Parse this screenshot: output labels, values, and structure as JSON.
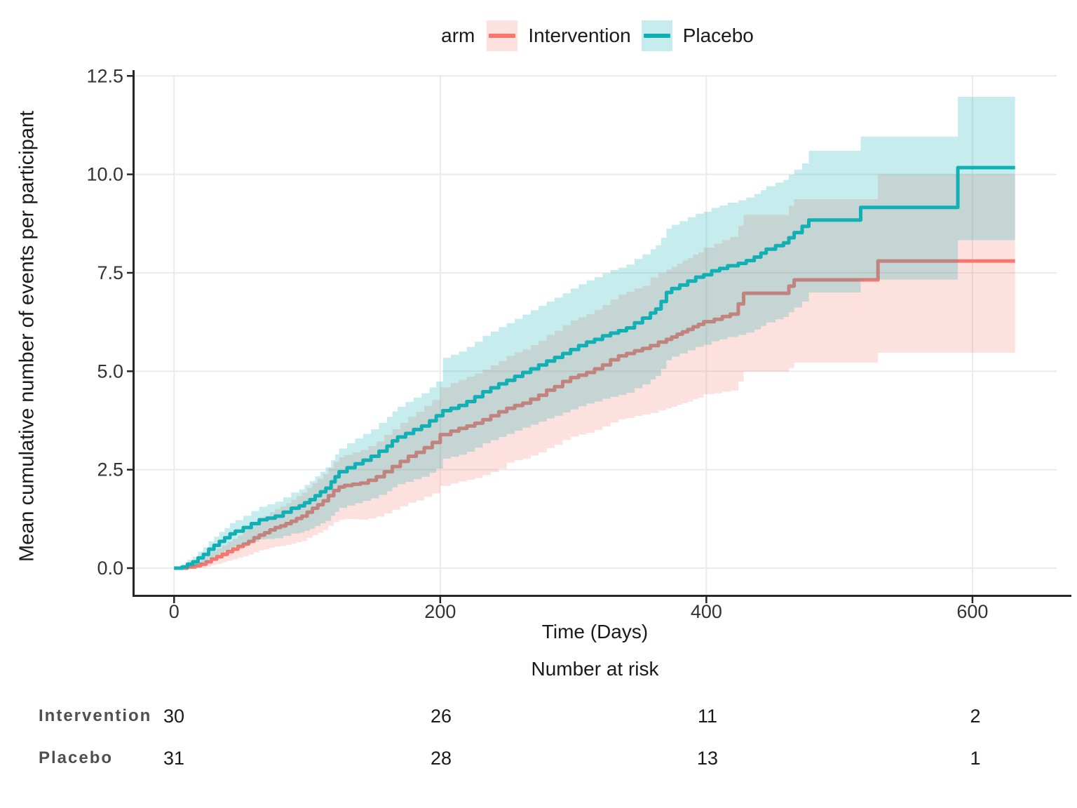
{
  "colors": {
    "background": "#ffffff",
    "gridline": "#ebebeb",
    "axis_line": "#262626",
    "tick_text": "#333333",
    "text": "#1a1a1a",
    "risk_label": "#4f4f4f"
  },
  "chart_data": {
    "type": "line",
    "subtype": "step-function-with-confidence-ribbons",
    "title": "",
    "legend": {
      "title": "arm",
      "position": "top",
      "entries": [
        {
          "label": "Intervention",
          "color": "#F8766D"
        },
        {
          "label": "Placebo",
          "color": "#10B0B5"
        }
      ]
    },
    "x_axis": {
      "title": "Time (Days)",
      "ticks": [
        0,
        200,
        400,
        600
      ],
      "tick_labels": [
        "0",
        "200",
        "400",
        "600"
      ],
      "range": [
        0,
        663
      ]
    },
    "y_axis": {
      "title": "Mean cumulative number of events per participant",
      "ticks": [
        0,
        2.5,
        5,
        7.5,
        10,
        12.5
      ],
      "tick_labels": [
        "0.0",
        "2.5",
        "5.0",
        "7.5",
        "10.0",
        "12.5"
      ],
      "range": [
        0,
        12.5
      ]
    },
    "grid": "major",
    "series": [
      {
        "name": "Intervention",
        "color": "#F8766D",
        "ribbon_alpha": 0.22,
        "points_format": [
          "time_days",
          "mcf",
          "ci_lower",
          "ci_upper"
        ],
        "points": [
          [
            0,
            0,
            0,
            0
          ],
          [
            10,
            0.03,
            0,
            0.1
          ],
          [
            16,
            0.06,
            0,
            0.16
          ],
          [
            20,
            0.1,
            0.01,
            0.24
          ],
          [
            24,
            0.16,
            0.04,
            0.33
          ],
          [
            28,
            0.23,
            0.08,
            0.42
          ],
          [
            32,
            0.29,
            0.11,
            0.5
          ],
          [
            36,
            0.35,
            0.15,
            0.58
          ],
          [
            40,
            0.42,
            0.19,
            0.67
          ],
          [
            44,
            0.48,
            0.22,
            0.74
          ],
          [
            48,
            0.55,
            0.26,
            0.83
          ],
          [
            52,
            0.61,
            0.3,
            0.97
          ],
          [
            56,
            0.68,
            0.34,
            1.05
          ],
          [
            60,
            0.77,
            0.4,
            1.16
          ],
          [
            64,
            0.84,
            0.45,
            1.25
          ],
          [
            68,
            0.9,
            0.48,
            1.33
          ],
          [
            72,
            0.97,
            0.52,
            1.42
          ],
          [
            76,
            1.03,
            0.55,
            1.5
          ],
          [
            80,
            1.07,
            0.56,
            1.57
          ],
          [
            84,
            1.13,
            0.59,
            1.65
          ],
          [
            88,
            1.19,
            0.62,
            1.73
          ],
          [
            92,
            1.26,
            0.66,
            1.83
          ],
          [
            96,
            1.32,
            0.69,
            1.92
          ],
          [
            100,
            1.42,
            0.77,
            2.04
          ],
          [
            104,
            1.52,
            0.84,
            2.16
          ],
          [
            108,
            1.61,
            0.9,
            2.27
          ],
          [
            112,
            1.71,
            0.97,
            2.39
          ],
          [
            116,
            1.84,
            1.07,
            2.54
          ],
          [
            120,
            1.97,
            1.17,
            2.7
          ],
          [
            124,
            2.06,
            1.23,
            2.81
          ],
          [
            128,
            2.1,
            1.25,
            2.87
          ],
          [
            134,
            2.13,
            1.24,
            2.94
          ],
          [
            140,
            2.16,
            1.23,
            3.0
          ],
          [
            146,
            2.23,
            1.26,
            3.1
          ],
          [
            152,
            2.32,
            1.31,
            3.22
          ],
          [
            158,
            2.45,
            1.39,
            3.38
          ],
          [
            164,
            2.58,
            1.48,
            3.53
          ],
          [
            170,
            2.71,
            1.57,
            3.69
          ],
          [
            176,
            2.84,
            1.66,
            3.84
          ],
          [
            182,
            2.94,
            1.72,
            3.97
          ],
          [
            188,
            3.06,
            1.81,
            4.12
          ],
          [
            194,
            3.19,
            1.9,
            4.27
          ],
          [
            200,
            3.39,
            2.09,
            4.59
          ],
          [
            208,
            3.48,
            2.15,
            4.7
          ],
          [
            214,
            3.55,
            2.2,
            4.78
          ],
          [
            220,
            3.61,
            2.24,
            4.86
          ],
          [
            226,
            3.68,
            2.29,
            4.94
          ],
          [
            232,
            3.77,
            2.36,
            5.04
          ],
          [
            238,
            3.87,
            2.44,
            5.15
          ],
          [
            244,
            3.97,
            2.52,
            5.26
          ],
          [
            250,
            4.06,
            2.68,
            5.39
          ],
          [
            256,
            4.13,
            2.74,
            5.48
          ],
          [
            262,
            4.19,
            2.78,
            5.55
          ],
          [
            268,
            4.29,
            2.86,
            5.66
          ],
          [
            274,
            4.39,
            2.94,
            5.77
          ],
          [
            280,
            4.52,
            3.05,
            5.92
          ],
          [
            286,
            4.61,
            3.13,
            6.03
          ],
          [
            292,
            4.74,
            3.25,
            6.17
          ],
          [
            298,
            4.84,
            3.34,
            6.29
          ],
          [
            304,
            4.9,
            3.39,
            6.37
          ],
          [
            310,
            4.97,
            3.44,
            6.45
          ],
          [
            316,
            5.06,
            3.51,
            6.56
          ],
          [
            322,
            5.16,
            3.6,
            6.68
          ],
          [
            328,
            5.29,
            3.7,
            6.82
          ],
          [
            334,
            5.39,
            3.78,
            6.94
          ],
          [
            340,
            5.45,
            3.81,
            7.02
          ],
          [
            346,
            5.52,
            3.86,
            7.1
          ],
          [
            352,
            5.58,
            3.9,
            7.17
          ],
          [
            358,
            5.65,
            3.94,
            7.38
          ],
          [
            364,
            5.74,
            4.01,
            7.49
          ],
          [
            370,
            5.81,
            4.06,
            7.58
          ],
          [
            374,
            5.87,
            4.1,
            7.65
          ],
          [
            378,
            5.94,
            4.15,
            7.73
          ],
          [
            382,
            6.0,
            4.19,
            7.81
          ],
          [
            386,
            6.06,
            4.23,
            7.87
          ],
          [
            390,
            6.13,
            4.29,
            7.96
          ],
          [
            394,
            6.19,
            4.33,
            8.02
          ],
          [
            398,
            6.26,
            4.42,
            8.14
          ],
          [
            406,
            6.32,
            4.44,
            8.24
          ],
          [
            412,
            6.39,
            4.48,
            8.33
          ],
          [
            418,
            6.45,
            4.51,
            8.41
          ],
          [
            424,
            6.71,
            4.74,
            8.69
          ],
          [
            428,
            6.98,
            4.99,
            8.97
          ],
          [
            462,
            7.16,
            5.08,
            9.2
          ],
          [
            466,
            7.32,
            5.22,
            9.37
          ],
          [
            529,
            7.8,
            5.47,
            10.0
          ],
          [
            632,
            7.8,
            5.47,
            10.0
          ]
        ]
      },
      {
        "name": "Placebo",
        "color": "#10B0B5",
        "ribbon_alpha": 0.24,
        "points_format": [
          "time_days",
          "mcf",
          "ci_lower",
          "ci_upper"
        ],
        "points": [
          [
            0,
            0,
            0,
            0
          ],
          [
            6,
            0.03,
            0,
            0.1
          ],
          [
            10,
            0.1,
            0.02,
            0.21
          ],
          [
            14,
            0.16,
            0.05,
            0.29
          ],
          [
            18,
            0.26,
            0.1,
            0.42
          ],
          [
            22,
            0.35,
            0.15,
            0.53
          ],
          [
            26,
            0.48,
            0.24,
            0.68
          ],
          [
            30,
            0.58,
            0.31,
            0.8
          ],
          [
            34,
            0.68,
            0.38,
            0.92
          ],
          [
            38,
            0.77,
            0.44,
            1.02
          ],
          [
            42,
            0.87,
            0.51,
            1.14
          ],
          [
            46,
            0.94,
            0.56,
            1.22
          ],
          [
            52,
            1.03,
            0.61,
            1.33
          ],
          [
            58,
            1.13,
            0.67,
            1.45
          ],
          [
            64,
            1.23,
            0.73,
            1.56
          ],
          [
            70,
            1.27,
            0.74,
            1.62
          ],
          [
            76,
            1.32,
            0.76,
            1.69
          ],
          [
            82,
            1.42,
            0.82,
            1.8
          ],
          [
            88,
            1.52,
            0.88,
            1.92
          ],
          [
            94,
            1.58,
            0.9,
            2.0
          ],
          [
            98,
            1.66,
            0.95,
            2.11
          ],
          [
            102,
            1.74,
            1.0,
            2.21
          ],
          [
            106,
            1.84,
            1.07,
            2.33
          ],
          [
            110,
            1.94,
            1.14,
            2.45
          ],
          [
            114,
            2.03,
            1.2,
            2.56
          ],
          [
            118,
            2.19,
            1.33,
            2.74
          ],
          [
            121,
            2.32,
            1.43,
            2.89
          ],
          [
            124,
            2.45,
            1.53,
            3.04
          ],
          [
            130,
            2.55,
            1.59,
            3.17
          ],
          [
            136,
            2.65,
            1.65,
            3.29
          ],
          [
            142,
            2.74,
            1.71,
            3.41
          ],
          [
            148,
            2.84,
            1.77,
            3.53
          ],
          [
            154,
            2.97,
            1.86,
            3.69
          ],
          [
            160,
            3.1,
            1.95,
            3.84
          ],
          [
            164,
            3.23,
            2.05,
            3.98
          ],
          [
            168,
            3.33,
            2.13,
            4.1
          ],
          [
            174,
            3.42,
            2.19,
            4.22
          ],
          [
            180,
            3.52,
            2.26,
            4.33
          ],
          [
            186,
            3.61,
            2.32,
            4.44
          ],
          [
            192,
            3.74,
            2.42,
            4.59
          ],
          [
            197,
            3.87,
            2.53,
            4.74
          ],
          [
            202,
            4.0,
            2.78,
            5.34
          ],
          [
            208,
            4.06,
            2.83,
            5.42
          ],
          [
            214,
            4.13,
            2.88,
            5.5
          ],
          [
            220,
            4.23,
            2.96,
            5.62
          ],
          [
            226,
            4.35,
            3.06,
            5.75
          ],
          [
            232,
            4.48,
            3.17,
            5.9
          ],
          [
            238,
            4.58,
            3.25,
            6.01
          ],
          [
            244,
            4.68,
            3.33,
            6.12
          ],
          [
            250,
            4.77,
            3.41,
            6.22
          ],
          [
            256,
            4.87,
            3.49,
            6.33
          ],
          [
            262,
            4.97,
            3.57,
            6.44
          ],
          [
            268,
            5.06,
            3.64,
            6.55
          ],
          [
            274,
            5.16,
            3.72,
            6.66
          ],
          [
            280,
            5.26,
            3.8,
            6.77
          ],
          [
            286,
            5.35,
            3.87,
            6.87
          ],
          [
            292,
            5.45,
            3.95,
            6.98
          ],
          [
            298,
            5.55,
            4.03,
            7.1
          ],
          [
            304,
            5.65,
            4.11,
            7.21
          ],
          [
            310,
            5.74,
            4.18,
            7.31
          ],
          [
            316,
            5.81,
            4.23,
            7.39
          ],
          [
            322,
            5.9,
            4.3,
            7.49
          ],
          [
            328,
            5.97,
            4.35,
            7.57
          ],
          [
            334,
            6.03,
            4.4,
            7.63
          ],
          [
            340,
            6.1,
            4.45,
            7.71
          ],
          [
            346,
            6.23,
            4.57,
            7.85
          ],
          [
            352,
            6.35,
            4.67,
            7.97
          ],
          [
            358,
            6.48,
            4.79,
            8.1
          ],
          [
            362,
            6.58,
            4.88,
            8.2
          ],
          [
            366,
            6.77,
            5.06,
            8.39
          ],
          [
            370,
            7.0,
            5.28,
            8.62
          ],
          [
            374,
            7.1,
            5.37,
            8.72
          ],
          [
            380,
            7.19,
            5.45,
            8.81
          ],
          [
            386,
            7.29,
            5.53,
            8.91
          ],
          [
            392,
            7.39,
            5.62,
            9.0
          ],
          [
            398,
            7.45,
            5.67,
            9.05
          ],
          [
            404,
            7.55,
            5.76,
            9.15
          ],
          [
            410,
            7.61,
            5.81,
            9.21
          ],
          [
            416,
            7.68,
            5.87,
            9.28
          ],
          [
            424,
            7.74,
            5.92,
            9.34
          ],
          [
            430,
            7.81,
            5.98,
            9.41
          ],
          [
            436,
            7.9,
            6.06,
            9.5
          ],
          [
            441,
            8.0,
            6.15,
            9.6
          ],
          [
            445,
            8.1,
            6.24,
            9.7
          ],
          [
            452,
            8.19,
            6.32,
            9.79
          ],
          [
            458,
            8.26,
            6.38,
            9.86
          ],
          [
            462,
            8.39,
            6.5,
            9.99
          ],
          [
            466,
            8.52,
            6.62,
            10.12
          ],
          [
            472,
            8.68,
            6.77,
            10.28
          ],
          [
            477,
            8.84,
            7.0,
            10.6
          ],
          [
            516,
            9.16,
            7.33,
            10.96
          ],
          [
            589,
            10.17,
            8.33,
            11.97
          ],
          [
            632,
            10.17,
            8.33,
            11.97
          ]
        ]
      }
    ],
    "risk_table": {
      "title": "Number at risk",
      "times": [
        0,
        200,
        400,
        600
      ],
      "rows": [
        {
          "label": "Intervention",
          "counts": [
            30,
            26,
            11,
            2
          ]
        },
        {
          "label": "Placebo",
          "counts": [
            31,
            28,
            13,
            1
          ]
        }
      ]
    }
  }
}
